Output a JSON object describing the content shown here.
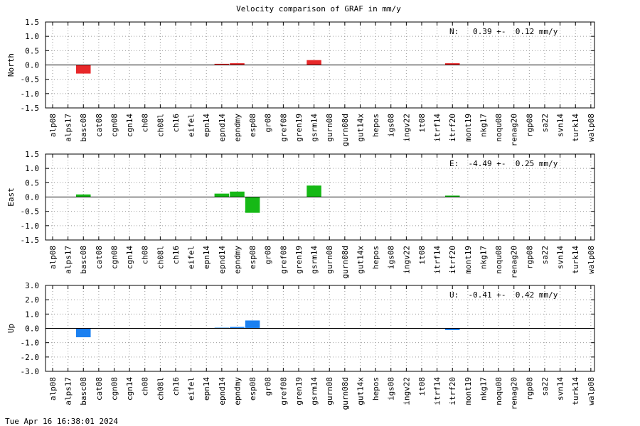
{
  "title": "Velocity comparison of GRAF in mm/y",
  "timestamp": "Tue Apr 16 16:38:01 2024",
  "chart_data": [
    {
      "type": "bar",
      "ylabel": "North",
      "ylim": [
        -1.5,
        1.5
      ],
      "yticks": [
        "1.5",
        "1.0",
        "0.5",
        "0.0",
        "-0.5",
        "-1.0",
        "-1.5"
      ],
      "grid": true,
      "color": "#e8282a",
      "annotation": "N:   0.39 +-  0.12 mm/y",
      "categories": [
        "alp08",
        "alps17",
        "basc08",
        "cat08",
        "cgn08",
        "cgn14",
        "ch08",
        "ch08l",
        "ch16",
        "eifel",
        "epn14",
        "epnd14",
        "epndmy",
        "esp08",
        "gr08",
        "gref08",
        "gren19",
        "gsrm14",
        "gurn08",
        "gurn08d",
        "gut14x",
        "hepos",
        "igs08",
        "ingv22",
        "it08",
        "itrf14",
        "itrf20",
        "mont19",
        "nkg17",
        "noqu08",
        "renag20",
        "rgp08",
        "sa22",
        "svn14",
        "turk14",
        "walp08"
      ],
      "values": [
        0,
        0,
        -0.3,
        0,
        0,
        0,
        0,
        0,
        0,
        0,
        0,
        0.04,
        0.06,
        0,
        0,
        0,
        0,
        0.17,
        0,
        0,
        0,
        0,
        0,
        0,
        0,
        0,
        0.06,
        0,
        0,
        0,
        0,
        0,
        0,
        0,
        0,
        0
      ]
    },
    {
      "type": "bar",
      "ylabel": "East",
      "ylim": [
        -1.5,
        1.5
      ],
      "yticks": [
        "1.5",
        "1.0",
        "0.5",
        "0.0",
        "-0.5",
        "-1.0",
        "-1.5"
      ],
      "grid": true,
      "color": "#16b916",
      "annotation": "E:  -4.49 +-  0.25 mm/y",
      "categories": [
        "alp08",
        "alps17",
        "basc08",
        "cat08",
        "cgn08",
        "cgn14",
        "ch08",
        "ch08l",
        "ch16",
        "eifel",
        "epn14",
        "epnd14",
        "epndmy",
        "esp08",
        "gr08",
        "gref08",
        "gren19",
        "gsrm14",
        "gurn08",
        "gurn08d",
        "gut14x",
        "hepos",
        "igs08",
        "ingv22",
        "it08",
        "itrf14",
        "itrf20",
        "mont19",
        "nkg17",
        "noqu08",
        "renag20",
        "rgp08",
        "sa22",
        "svn14",
        "turk14",
        "walp08"
      ],
      "values": [
        0,
        0,
        0.09,
        0,
        0,
        0,
        0,
        0,
        0,
        0,
        0,
        0.12,
        0.19,
        -0.55,
        0,
        0,
        0,
        0.4,
        0,
        0,
        0,
        0,
        0,
        0,
        0,
        0,
        0.05,
        0,
        0,
        0,
        0,
        0,
        0,
        0,
        0,
        0
      ]
    },
    {
      "type": "bar",
      "ylabel": "Up",
      "ylim": [
        -3.0,
        3.0
      ],
      "yticks": [
        "3.0",
        "2.0",
        "1.0",
        "0.0",
        "-1.0",
        "-2.0",
        "-3.0"
      ],
      "grid": true,
      "color": "#1b80f0",
      "annotation": "U:  -0.41 +-  0.42 mm/y",
      "categories": [
        "alp08",
        "alps17",
        "basc08",
        "cat08",
        "cgn08",
        "cgn14",
        "ch08",
        "ch08l",
        "ch16",
        "eifel",
        "epn14",
        "epnd14",
        "epndmy",
        "esp08",
        "gr08",
        "gref08",
        "gren19",
        "gsrm14",
        "gurn08",
        "gurn08d",
        "gut14x",
        "hepos",
        "igs08",
        "ingv22",
        "it08",
        "itrf14",
        "itrf20",
        "mont19",
        "nkg17",
        "noqu08",
        "renag20",
        "rgp08",
        "sa22",
        "svn14",
        "turk14",
        "walp08"
      ],
      "values": [
        0,
        0,
        -0.62,
        0,
        0,
        0,
        0,
        0,
        0,
        0,
        0,
        0.05,
        0.1,
        0.55,
        0,
        0,
        0,
        0,
        0,
        0,
        0,
        0,
        0,
        0,
        0,
        0,
        -0.12,
        0,
        0,
        0,
        0,
        0,
        0,
        0,
        0,
        0
      ]
    }
  ]
}
